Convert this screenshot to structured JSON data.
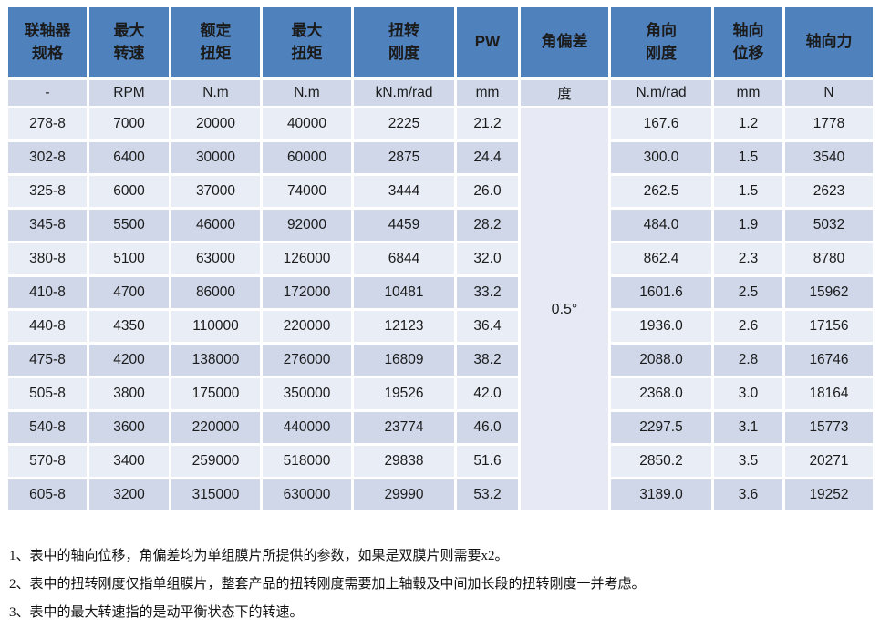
{
  "table": {
    "columns": [
      {
        "label": "联轴器\n规格",
        "unit": "-"
      },
      {
        "label": "最大\n转速",
        "unit": "RPM"
      },
      {
        "label": "额定\n扭矩",
        "unit": "N.m"
      },
      {
        "label": "最大\n扭矩",
        "unit": "N.m"
      },
      {
        "label": "扭转\n刚度",
        "unit": "kN.m/rad"
      },
      {
        "label": "PW",
        "unit": "mm"
      },
      {
        "label": "角偏差",
        "unit": "度"
      },
      {
        "label": "角向\n刚度",
        "unit": "N.m/rad"
      },
      {
        "label": "轴向\n位移",
        "unit": "mm"
      },
      {
        "label": "轴向力",
        "unit": "N"
      }
    ],
    "merged_after_column_index": 5,
    "angular_deviation_value": "0.5°",
    "rows": [
      [
        "278-8",
        "7000",
        "20000",
        "40000",
        "2225",
        "21.2",
        "167.6",
        "1.2",
        "1778"
      ],
      [
        "302-8",
        "6400",
        "30000",
        "60000",
        "2875",
        "24.4",
        "300.0",
        "1.5",
        "3540"
      ],
      [
        "325-8",
        "6000",
        "37000",
        "74000",
        "3444",
        "26.0",
        "262.5",
        "1.5",
        "2623"
      ],
      [
        "345-8",
        "5500",
        "46000",
        "92000",
        "4459",
        "28.2",
        "484.0",
        "1.9",
        "5032"
      ],
      [
        "380-8",
        "5100",
        "63000",
        "126000",
        "6844",
        "32.0",
        "862.4",
        "2.3",
        "8780"
      ],
      [
        "410-8",
        "4700",
        "86000",
        "172000",
        "10481",
        "33.2",
        "1601.6",
        "2.5",
        "15962"
      ],
      [
        "440-8",
        "4350",
        "110000",
        "220000",
        "12123",
        "36.4",
        "1936.0",
        "2.6",
        "17156"
      ],
      [
        "475-8",
        "4200",
        "138000",
        "276000",
        "16809",
        "38.2",
        "2088.0",
        "2.8",
        "16746"
      ],
      [
        "505-8",
        "3800",
        "175000",
        "350000",
        "19526",
        "42.0",
        "2368.0",
        "3.0",
        "18164"
      ],
      [
        "540-8",
        "3600",
        "220000",
        "440000",
        "23774",
        "46.0",
        "2297.5",
        "3.1",
        "15773"
      ],
      [
        "570-8",
        "3400",
        "259000",
        "518000",
        "29838",
        "51.6",
        "2850.2",
        "3.5",
        "20271"
      ],
      [
        "605-8",
        "3200",
        "315000",
        "630000",
        "29990",
        "53.2",
        "3189.0",
        "3.6",
        "19252"
      ]
    ]
  },
  "notes": [
    "1、表中的轴向位移，角偏差均为单组膜片所提供的参数，如果是双膜片则需要x2。",
    "2、表中的扭转刚度仅指单组膜片，整套产品的扭转刚度需要加上轴毂及中间加长段的扭转刚度一并考虑。",
    "3、表中的最大转速指的是动平衡状态下的转速。"
  ],
  "colors": {
    "header_bg": "#4F81BD",
    "band_dark": "#CFD7E9",
    "band_light": "#E9EDF6",
    "merged_bg": "#E7EAF4",
    "header_text": "#FFFFFF",
    "body_text": "#1B1B1B"
  }
}
